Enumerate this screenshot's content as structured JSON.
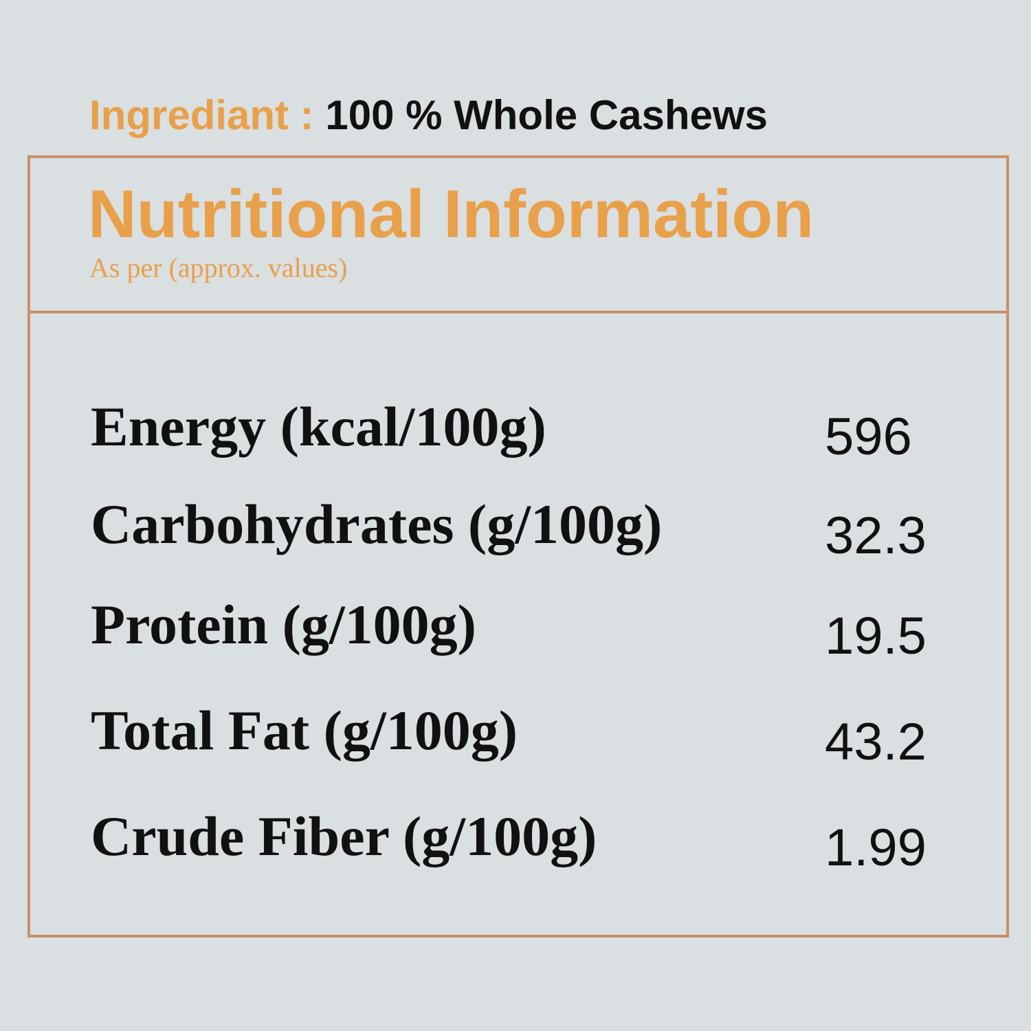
{
  "ingredient": {
    "label": "Ingrediant :",
    "value": "100 % Whole Cashews"
  },
  "panel": {
    "title": "Nutritional Information",
    "subtitle": "As per (approx. values)",
    "rows": [
      [
        "Energy (kcal/100g)",
        "596"
      ],
      [
        "Carbohydrates (g/100g)",
        "32.3"
      ],
      [
        "Protein (g/100g)",
        "19.5"
      ],
      [
        "Total Fat (g/100g)",
        "43.2"
      ],
      [
        "Crude Fiber (g/100g)",
        "1.99"
      ]
    ]
  }
}
